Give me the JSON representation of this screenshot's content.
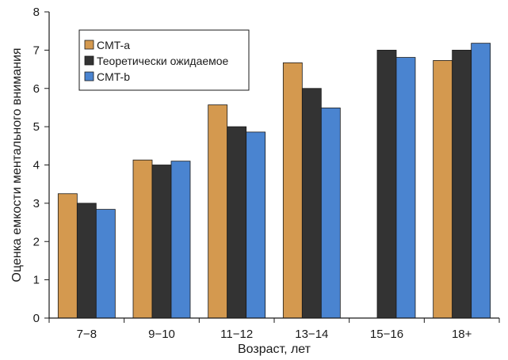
{
  "chart_data": {
    "type": "bar",
    "categories": [
      "7−8",
      "9−10",
      "11−12",
      "13−14",
      "15−16",
      "18+"
    ],
    "series": [
      {
        "name": "CMT-a",
        "color": "#d4994f",
        "values": [
          3.25,
          4.13,
          5.57,
          6.67,
          null,
          6.73
        ]
      },
      {
        "name": "Теоретически ожидаемое",
        "color": "#333333",
        "values": [
          3.0,
          4.0,
          5.0,
          6.0,
          7.0,
          7.0
        ]
      },
      {
        "name": "CMT-b",
        "color": "#4a84d0",
        "values": [
          2.84,
          4.1,
          4.86,
          5.49,
          6.81,
          7.18
        ]
      }
    ],
    "xlabel": "Возраст, лет",
    "ylabel": "Оценка емкости ментального внимания",
    "ylim": [
      0,
      8
    ],
    "yticks": [
      0,
      1,
      2,
      3,
      4,
      5,
      6,
      7,
      8
    ],
    "grid": false,
    "legend_position": "top-left"
  }
}
